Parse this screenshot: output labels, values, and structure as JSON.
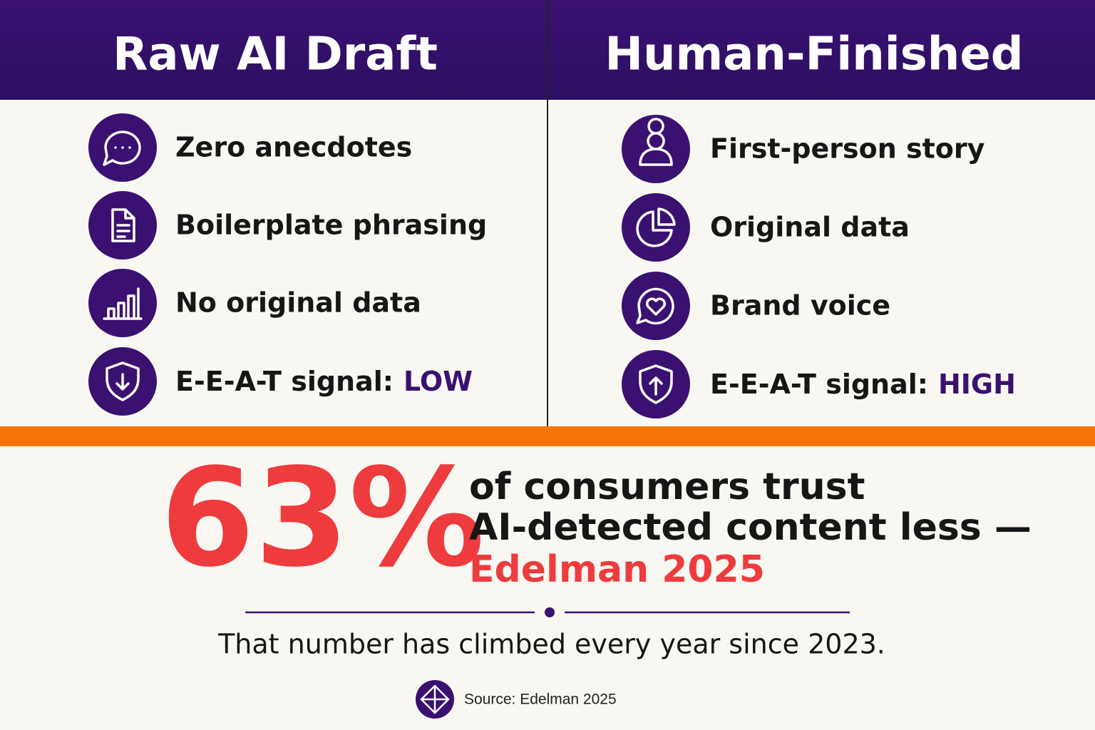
{
  "left": {
    "title": "Raw AI Draft",
    "items": [
      "Zero anecdotes",
      "Boilerplate phrasing",
      "No original data"
    ],
    "signal": {
      "label": "E-E-A-T signal:",
      "value": "LOW"
    }
  },
  "right": {
    "title": "Human-Finished",
    "items": [
      "First-person story",
      "Original data",
      "Brand voice"
    ],
    "signal": {
      "label": "E-E-A-T signal:",
      "value": "HIGH"
    }
  },
  "stat": {
    "value": "63%",
    "lines": [
      "of consumers trust",
      "AI-detected content less —"
    ],
    "attribution": "Edelman 2025"
  },
  "footnote": "That number has climbed every year since 2023.",
  "source": "Source: Edelman 2025"
}
